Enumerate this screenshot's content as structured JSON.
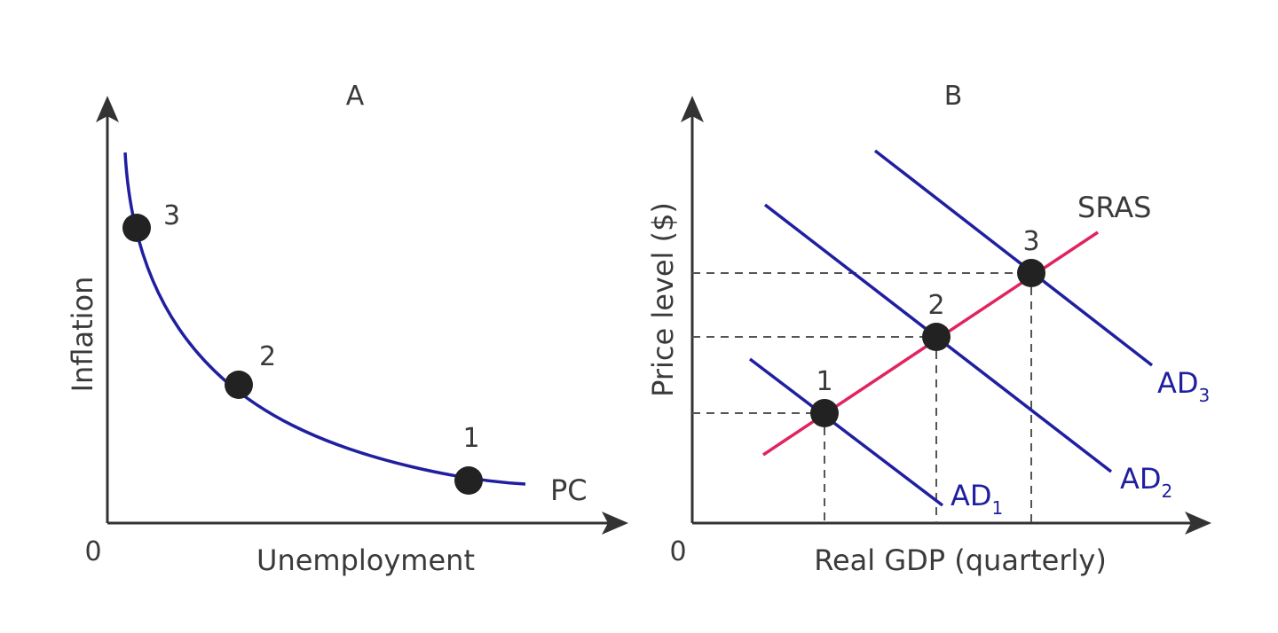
{
  "colors": {
    "axis": "#333333",
    "curve": "#1f1fa0",
    "sras": "#e0245e",
    "point": "#222222",
    "text": "#3a3a3a",
    "guide": "#555555"
  },
  "panel_a": {
    "title": "A",
    "ylabel": "Inflation",
    "xlabel": "Unemployment",
    "origin": "0",
    "curve_label": "PC",
    "points": [
      "3",
      "2",
      "1"
    ]
  },
  "panel_b": {
    "title": "B",
    "ylabel": "Price level ($)",
    "xlabel": "Real GDP (quarterly)",
    "origin": "0",
    "sras_label": "SRAS",
    "ad_labels": [
      {
        "base": "AD",
        "sub": "1"
      },
      {
        "base": "AD",
        "sub": "2"
      },
      {
        "base": "AD",
        "sub": "3"
      }
    ],
    "points": [
      "1",
      "2",
      "3"
    ]
  }
}
